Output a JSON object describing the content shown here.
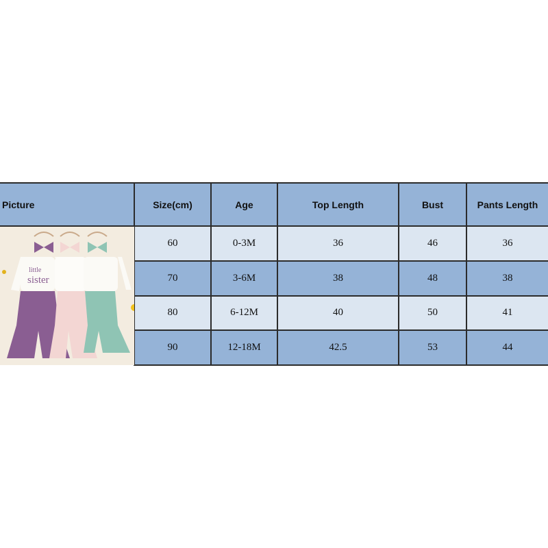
{
  "columns": [
    "Picture",
    "Size(cm)",
    "Age",
    "Top Length",
    "Bust",
    "Pants Length"
  ],
  "rows": [
    {
      "size": "60",
      "age": "0-3M",
      "top_length": "36",
      "bust": "46",
      "pants_length": "36"
    },
    {
      "size": "70",
      "age": "3-6M",
      "top_length": "38",
      "bust": "48",
      "pants_length": "38"
    },
    {
      "size": "80",
      "age": "6-12M",
      "top_length": "40",
      "bust": "50",
      "pants_length": "41"
    },
    {
      "size": "90",
      "age": "12-18M",
      "top_length": "42.5",
      "bust": "53",
      "pants_length": "44"
    }
  ],
  "product_image": {
    "print_text": "little sister",
    "outfit_colors": [
      "#8a5e92",
      "#f3d6d3",
      "#8fc4b4"
    ]
  },
  "colors": {
    "header": "#95b3d7",
    "row_light": "#dce6f1",
    "row_dark": "#95b3d7"
  }
}
